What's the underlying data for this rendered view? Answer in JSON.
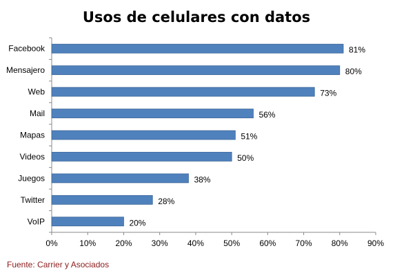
{
  "chart_data": {
    "type": "bar",
    "orientation": "horizontal",
    "title": "Usos de celulares con datos",
    "categories": [
      "Facebook",
      "Mensajero",
      "Web",
      "Mail",
      "Mapas",
      "Videos",
      "Juegos",
      "Twitter",
      "VoIP"
    ],
    "values": [
      81,
      80,
      73,
      56,
      51,
      50,
      38,
      28,
      20
    ],
    "data_labels": [
      "81%",
      "80%",
      "73%",
      "56%",
      "51%",
      "50%",
      "38%",
      "28%",
      "20%"
    ],
    "xlim": [
      0,
      90
    ],
    "x_ticks": [
      "0%",
      "10%",
      "20%",
      "30%",
      "40%",
      "50%",
      "60%",
      "70%",
      "80%",
      "90%"
    ],
    "xlabel": "",
    "ylabel": "",
    "grid": false,
    "legend": "none",
    "bar_color": "#4f81bd",
    "bar_edge_color": "#3c6797"
  },
  "source": "Fuente: Carrier y Asociados",
  "source_color": "#8b1a1a"
}
